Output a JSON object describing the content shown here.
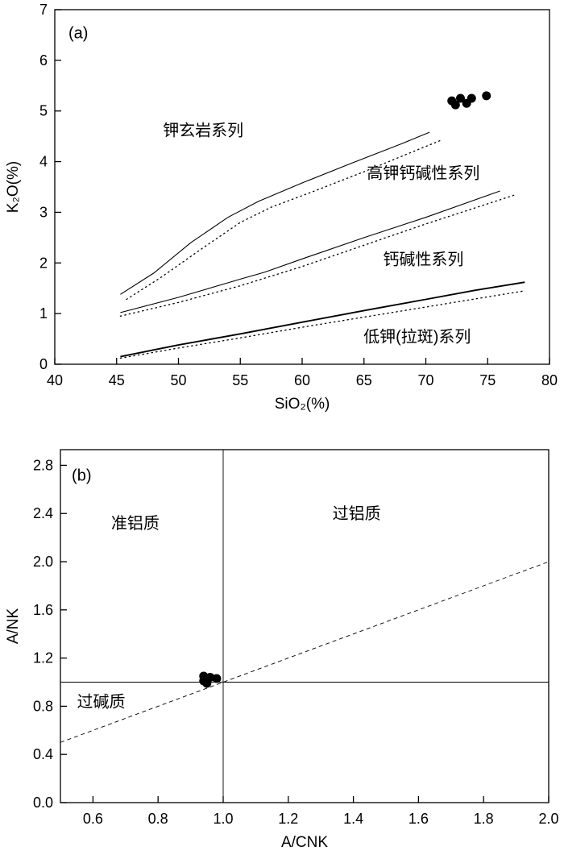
{
  "figure": {
    "background": "#ffffff",
    "ink_color": "#000000"
  },
  "chart_data": [
    {
      "type": "scatter",
      "panel_label": "(a)",
      "panel_label_pos": [
        41.9,
        6.55
      ],
      "title": "",
      "xlabel": "SiO₂(%)",
      "ylabel": "K₂O(%)",
      "xlim": [
        40,
        80
      ],
      "ylim": [
        0,
        7
      ],
      "xticks": [
        40,
        45,
        50,
        55,
        60,
        65,
        70,
        75,
        80
      ],
      "xtick_labels": [
        "40",
        "45",
        "50",
        "55",
        "60",
        "65",
        "70",
        "75",
        "80"
      ],
      "yticks": [
        0,
        1,
        2,
        3,
        4,
        5,
        6,
        7
      ],
      "ytick_labels": [
        "0",
        "1",
        "2",
        "3",
        "4",
        "5",
        "6",
        "7"
      ],
      "grid": false,
      "legend": "none",
      "point_radius": 5.5,
      "points": [
        [
          72.1,
          5.2
        ],
        [
          72.4,
          5.12
        ],
        [
          72.8,
          5.25
        ],
        [
          73.3,
          5.15
        ],
        [
          73.7,
          5.25
        ],
        [
          74.9,
          5.3
        ]
      ],
      "boundary_lines": [
        {
          "name": "shoshonite-highK-solid",
          "style": "solid",
          "width": 1.1,
          "points": [
            [
              45.3,
              1.38
            ],
            [
              48,
              1.8
            ],
            [
              51,
              2.4
            ],
            [
              54,
              2.9
            ],
            [
              56.5,
              3.22
            ],
            [
              60,
              3.58
            ],
            [
              64,
              3.97
            ],
            [
              68,
              4.35
            ],
            [
              70.3,
              4.58
            ]
          ]
        },
        {
          "name": "shoshonite-highK-dotted",
          "style": "dotted",
          "width": 1.3,
          "points": [
            [
              45.8,
              1.28
            ],
            [
              48.5,
              1.7
            ],
            [
              52,
              2.3
            ],
            [
              55,
              2.8
            ],
            [
              57.5,
              3.1
            ],
            [
              61,
              3.42
            ],
            [
              65,
              3.8
            ],
            [
              69,
              4.2
            ],
            [
              71.2,
              4.42
            ]
          ]
        },
        {
          "name": "highK-calcalkaline-solid",
          "style": "solid",
          "width": 1.1,
          "points": [
            [
              45.3,
              1.02
            ],
            [
              50,
              1.32
            ],
            [
              55,
              1.68
            ],
            [
              57,
              1.82
            ],
            [
              60,
              2.08
            ],
            [
              65,
              2.5
            ],
            [
              70,
              2.9
            ],
            [
              76,
              3.42
            ]
          ]
        },
        {
          "name": "highK-calcalkaline-dotted",
          "style": "dotted",
          "width": 1.3,
          "points": [
            [
              45.3,
              0.95
            ],
            [
              50,
              1.22
            ],
            [
              55,
              1.55
            ],
            [
              60,
              1.93
            ],
            [
              65,
              2.35
            ],
            [
              70,
              2.77
            ],
            [
              77.3,
              3.35
            ]
          ]
        },
        {
          "name": "calcalkaline-lowK-solid",
          "style": "solid",
          "width": 1.9,
          "points": [
            [
              45.3,
              0.15
            ],
            [
              50,
              0.38
            ],
            [
              55,
              0.6
            ],
            [
              60,
              0.83
            ],
            [
              65,
              1.06
            ],
            [
              70,
              1.28
            ],
            [
              74,
              1.46
            ],
            [
              78,
              1.62
            ]
          ]
        },
        {
          "name": "calcalkaline-lowK-dotted",
          "style": "dotted",
          "width": 1.3,
          "points": [
            [
              45.3,
              0.12
            ],
            [
              50,
              0.32
            ],
            [
              55,
              0.52
            ],
            [
              60,
              0.73
            ],
            [
              65,
              0.93
            ],
            [
              70,
              1.13
            ],
            [
              75,
              1.33
            ],
            [
              78,
              1.45
            ]
          ]
        }
      ],
      "ref_lines": [],
      "region_labels": [
        {
          "text": "钾玄岩系列",
          "x": 52,
          "y": 4.62
        },
        {
          "text": "高钾钙碱性系列",
          "x": 69.8,
          "y": 3.78
        },
        {
          "text": "钙碱性系列",
          "x": 69.8,
          "y": 2.08
        },
        {
          "text": "低钾(拉斑)系列",
          "x": 69.3,
          "y": 0.55
        }
      ]
    },
    {
      "type": "scatter",
      "panel_label": "(b)",
      "panel_label_pos": [
        0.565,
        2.72
      ],
      "title": "",
      "xlabel": "A/CNK",
      "ylabel": "A/NK",
      "xlim": [
        0.5,
        2.0
      ],
      "ylim": [
        0,
        2.93
      ],
      "xticks": [
        0.6,
        0.8,
        1.0,
        1.2,
        1.4,
        1.6,
        1.8,
        2.0
      ],
      "xtick_labels": [
        "0.6",
        "0.8",
        "1.0",
        "1.2",
        "1.4",
        "1.6",
        "1.8",
        "2.0"
      ],
      "yticks": [
        0,
        0.4,
        0.8,
        1.2,
        1.6,
        2.0,
        2.4,
        2.8
      ],
      "ytick_labels": [
        "0.0",
        "0.4",
        "0.8",
        "1.2",
        "1.6",
        "2.0",
        "2.4",
        "2.8"
      ],
      "grid": false,
      "legend": "none",
      "point_radius": 5.5,
      "points": [
        [
          0.94,
          1.01
        ],
        [
          0.94,
          1.05
        ],
        [
          0.95,
          0.99
        ],
        [
          0.96,
          1.04
        ],
        [
          0.98,
          1.03
        ]
      ],
      "boundary_lines": [],
      "ref_lines": [
        {
          "name": "vertical-acnk-1",
          "type": "v",
          "at": 1.0,
          "style": "solid",
          "width": 0.9
        },
        {
          "name": "horizontal-ank-1",
          "type": "h",
          "at": 1.0,
          "style": "solid",
          "width": 0.9
        },
        {
          "name": "one-to-one-line",
          "type": "segment",
          "from": [
            0.5,
            0.5
          ],
          "to": [
            2.0,
            2.0
          ],
          "style": "dashed",
          "width": 0.9
        }
      ],
      "region_labels": [
        {
          "text": "准铝质",
          "x": 0.73,
          "y": 2.32
        },
        {
          "text": "过铝质",
          "x": 1.41,
          "y": 2.4
        },
        {
          "text": "过碱质",
          "x": 0.625,
          "y": 0.84
        }
      ]
    }
  ]
}
